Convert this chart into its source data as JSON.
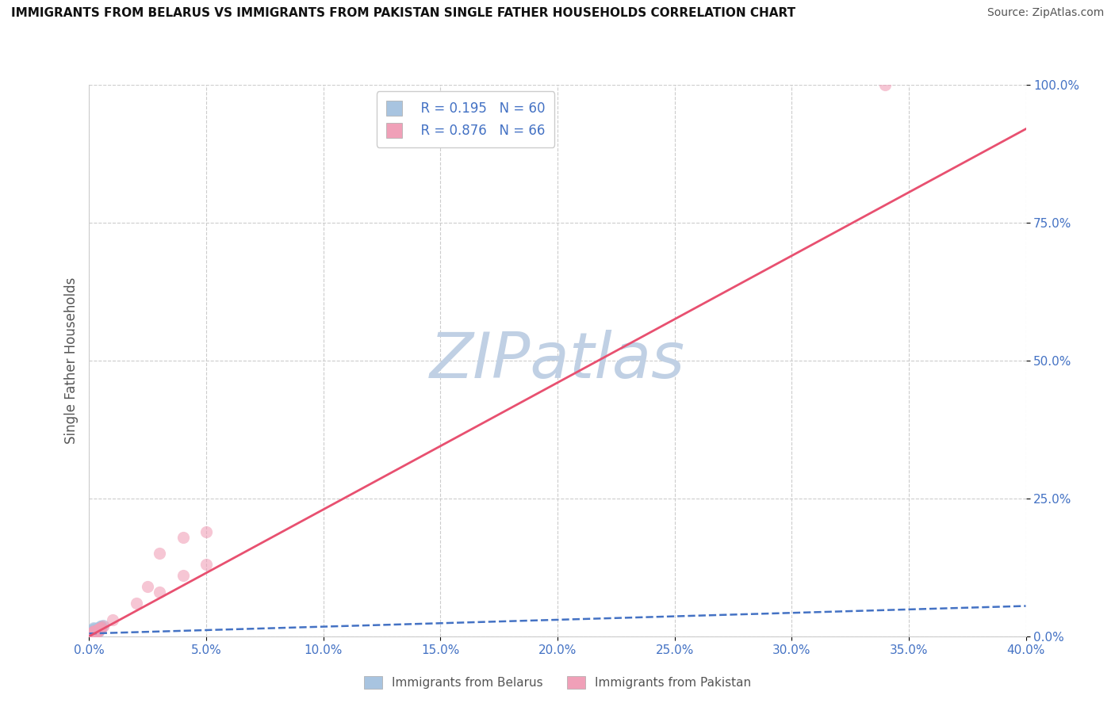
{
  "title": "IMMIGRANTS FROM BELARUS VS IMMIGRANTS FROM PAKISTAN SINGLE FATHER HOUSEHOLDS CORRELATION CHART",
  "source": "Source: ZipAtlas.com",
  "ylabel": "Single Father Households",
  "xlabel": "",
  "xlim": [
    0.0,
    0.4
  ],
  "ylim": [
    0.0,
    1.0
  ],
  "xticks": [
    0.0,
    0.05,
    0.1,
    0.15,
    0.2,
    0.25,
    0.3,
    0.35,
    0.4
  ],
  "xticklabels": [
    "0.0%",
    "5.0%",
    "10.0%",
    "15.0%",
    "20.0%",
    "25.0%",
    "30.0%",
    "35.0%",
    "40.0%"
  ],
  "yticks": [
    0.0,
    0.25,
    0.5,
    0.75,
    1.0
  ],
  "yticklabels": [
    "0.0%",
    "25.0%",
    "50.0%",
    "75.0%",
    "100.0%"
  ],
  "grid_color": "#cccccc",
  "watermark": "ZIPatlas",
  "watermark_color": "#c0d0e4",
  "belarus_color": "#a8c4e0",
  "pakistan_color": "#f0a0b8",
  "belarus_line_color": "#4472c4",
  "pakistan_line_color": "#e85070",
  "legend_R_belarus": "R = 0.195",
  "legend_N_belarus": "N = 60",
  "legend_R_pakistan": "R = 0.876",
  "legend_N_pakistan": "N = 66",
  "belarus_scatter_x": [
    0.001,
    0.002,
    0.001,
    0.003,
    0.002,
    0.001,
    0.003,
    0.004,
    0.002,
    0.001,
    0.005,
    0.003,
    0.002,
    0.004,
    0.001,
    0.006,
    0.003,
    0.002,
    0.005,
    0.004,
    0.001,
    0.002,
    0.003,
    0.001,
    0.004,
    0.002,
    0.003,
    0.005,
    0.002,
    0.001,
    0.004,
    0.002,
    0.003,
    0.001,
    0.002,
    0.003,
    0.001,
    0.004,
    0.002,
    0.001,
    0.003,
    0.002,
    0.001,
    0.004,
    0.003,
    0.002,
    0.001,
    0.003,
    0.002,
    0.004,
    0.001,
    0.002,
    0.003,
    0.001,
    0.002,
    0.004,
    0.003,
    0.001,
    0.002,
    0.003
  ],
  "belarus_scatter_y": [
    0.01,
    0.015,
    0.008,
    0.012,
    0.005,
    0.01,
    0.007,
    0.009,
    0.013,
    0.006,
    0.018,
    0.011,
    0.014,
    0.016,
    0.004,
    0.02,
    0.009,
    0.012,
    0.017,
    0.015,
    0.003,
    0.008,
    0.01,
    0.006,
    0.013,
    0.009,
    0.011,
    0.019,
    0.007,
    0.005,
    0.014,
    0.006,
    0.009,
    0.004,
    0.007,
    0.01,
    0.005,
    0.012,
    0.008,
    0.003,
    0.011,
    0.007,
    0.004,
    0.013,
    0.009,
    0.006,
    0.003,
    0.01,
    0.007,
    0.014,
    0.002,
    0.005,
    0.008,
    0.003,
    0.006,
    0.012,
    0.009,
    0.002,
    0.005,
    0.008
  ],
  "pakistan_scatter_x": [
    0.001,
    0.002,
    0.001,
    0.003,
    0.002,
    0.001,
    0.003,
    0.004,
    0.002,
    0.001,
    0.005,
    0.003,
    0.002,
    0.004,
    0.001,
    0.006,
    0.003,
    0.002,
    0.005,
    0.004,
    0.001,
    0.002,
    0.003,
    0.001,
    0.004,
    0.002,
    0.003,
    0.005,
    0.002,
    0.001,
    0.004,
    0.002,
    0.003,
    0.001,
    0.002,
    0.003,
    0.001,
    0.004,
    0.002,
    0.001,
    0.003,
    0.002,
    0.001,
    0.004,
    0.003,
    0.002,
    0.001,
    0.003,
    0.03,
    0.04,
    0.001,
    0.002,
    0.003,
    0.05,
    0.002,
    0.004,
    0.003,
    0.001,
    0.34,
    0.002,
    0.01,
    0.02,
    0.025,
    0.03,
    0.04,
    0.05
  ],
  "pakistan_scatter_y": [
    0.005,
    0.008,
    0.003,
    0.01,
    0.006,
    0.004,
    0.009,
    0.012,
    0.007,
    0.003,
    0.015,
    0.008,
    0.01,
    0.013,
    0.003,
    0.018,
    0.007,
    0.009,
    0.014,
    0.012,
    0.002,
    0.006,
    0.008,
    0.004,
    0.011,
    0.007,
    0.009,
    0.016,
    0.005,
    0.003,
    0.012,
    0.005,
    0.008,
    0.003,
    0.006,
    0.008,
    0.004,
    0.01,
    0.006,
    0.003,
    0.009,
    0.005,
    0.003,
    0.011,
    0.007,
    0.005,
    0.003,
    0.008,
    0.08,
    0.11,
    0.002,
    0.004,
    0.007,
    0.13,
    0.005,
    0.01,
    0.008,
    0.002,
    1.0,
    0.004,
    0.03,
    0.06,
    0.09,
    0.15,
    0.18,
    0.19
  ],
  "belarus_trend_x": [
    0.0,
    0.4
  ],
  "belarus_trend_y": [
    0.005,
    0.055
  ],
  "pakistan_trend_x": [
    0.0,
    0.4
  ],
  "pakistan_trend_y": [
    0.0,
    0.92
  ]
}
